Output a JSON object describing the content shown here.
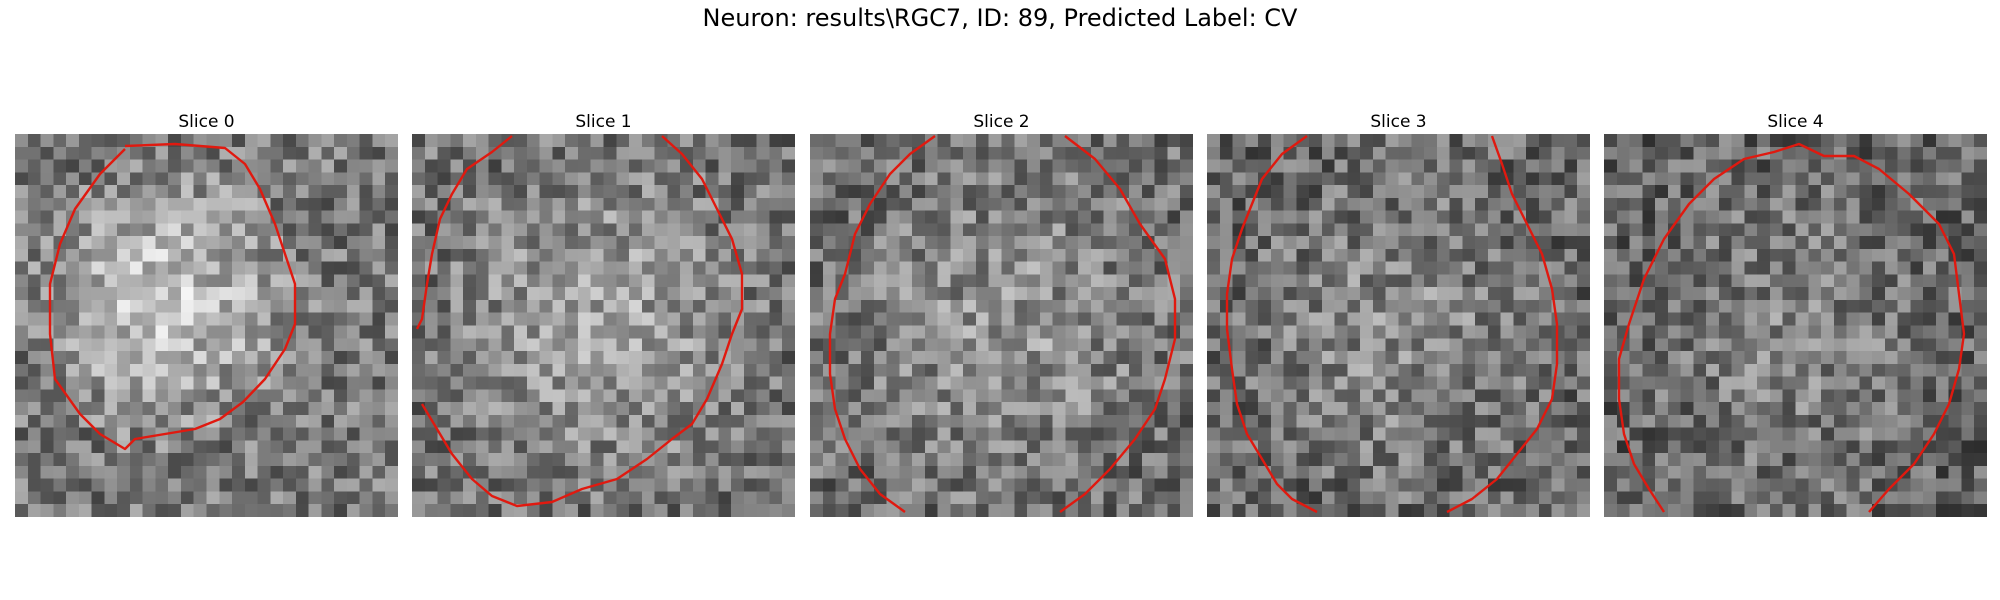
{
  "figure": {
    "title": "Neuron: results\\RGC7, ID: 89, Predicted Label: CV"
  },
  "panels": [
    {
      "title": "Slice 0",
      "contour_color": "#e0190f"
    },
    {
      "title": "Slice 1",
      "contour_color": "#e0190f"
    },
    {
      "title": "Slice 2",
      "contour_color": "#e0190f"
    },
    {
      "title": "Slice 3",
      "contour_color": "#e0190f"
    },
    {
      "title": "Slice 4",
      "contour_color": "#e0190f"
    }
  ],
  "style": {
    "contour_color": "#e0190f",
    "colormap": "gray"
  }
}
